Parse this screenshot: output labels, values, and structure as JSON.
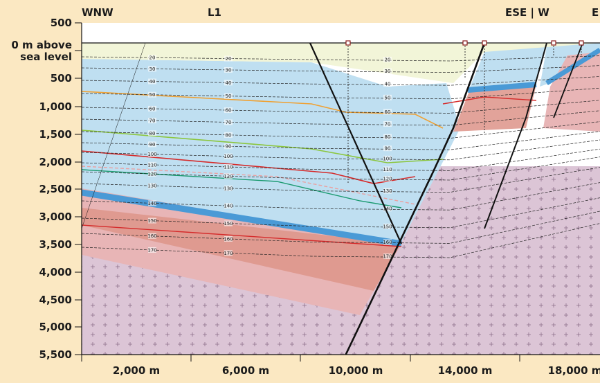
{
  "header": {
    "left": "WNW",
    "middle": "L1",
    "right": "ESE | W",
    "far_right": "E"
  },
  "y_axis": {
    "labels": [
      "500",
      "0 m above",
      "sea level",
      "500",
      "1,000",
      "1,500",
      "2,000",
      "2,500",
      "3,000",
      "3,500",
      "4,000",
      "4,500",
      "5,000",
      "5,500"
    ]
  },
  "x_axis": {
    "labels": [
      "2,000 m",
      "6,000 m",
      "10,000 m",
      "14,000 m",
      "18,000 m"
    ]
  },
  "isotherms": [
    "20",
    "30",
    "40",
    "50",
    "60",
    "70",
    "80",
    "90",
    "100",
    "110",
    "120",
    "130",
    "140",
    "150",
    "160",
    "170"
  ]
}
